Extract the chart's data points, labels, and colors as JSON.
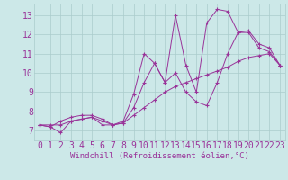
{
  "background_color": "#cce8e8",
  "grid_color": "#aacccc",
  "line_color": "#993399",
  "marker_color": "#993399",
  "xlabel": "Windchill (Refroidissement éolien,°C)",
  "ylabel_ticks": [
    7,
    8,
    9,
    10,
    11,
    12,
    13
  ],
  "xlabel_ticks": [
    0,
    1,
    2,
    3,
    4,
    5,
    6,
    7,
    8,
    9,
    10,
    11,
    12,
    13,
    14,
    15,
    16,
    17,
    18,
    19,
    20,
    21,
    22,
    23
  ],
  "xlim": [
    -0.5,
    23.5
  ],
  "ylim": [
    6.5,
    13.6
  ],
  "series": [
    [
      7.3,
      7.2,
      6.9,
      7.5,
      7.6,
      7.7,
      7.3,
      7.3,
      7.5,
      8.9,
      11.0,
      10.5,
      9.5,
      13.0,
      10.4,
      9.0,
      12.6,
      13.3,
      13.2,
      12.1,
      12.1,
      11.3,
      11.1,
      10.4
    ],
    [
      7.3,
      7.2,
      7.5,
      7.7,
      7.8,
      7.8,
      7.6,
      7.3,
      7.4,
      8.2,
      9.5,
      10.5,
      9.5,
      10.0,
      9.0,
      8.5,
      8.3,
      9.5,
      11.0,
      12.1,
      12.2,
      11.5,
      11.3,
      10.4
    ],
    [
      7.3,
      7.3,
      7.3,
      7.5,
      7.6,
      7.7,
      7.5,
      7.3,
      7.4,
      7.8,
      8.2,
      8.6,
      9.0,
      9.3,
      9.5,
      9.7,
      9.9,
      10.1,
      10.3,
      10.6,
      10.8,
      10.9,
      11.0,
      10.4
    ]
  ],
  "font_family": "monospace",
  "xlabel_fontsize": 6.5,
  "tick_fontsize": 7.0,
  "figsize": [
    3.2,
    2.0
  ],
  "dpi": 100
}
